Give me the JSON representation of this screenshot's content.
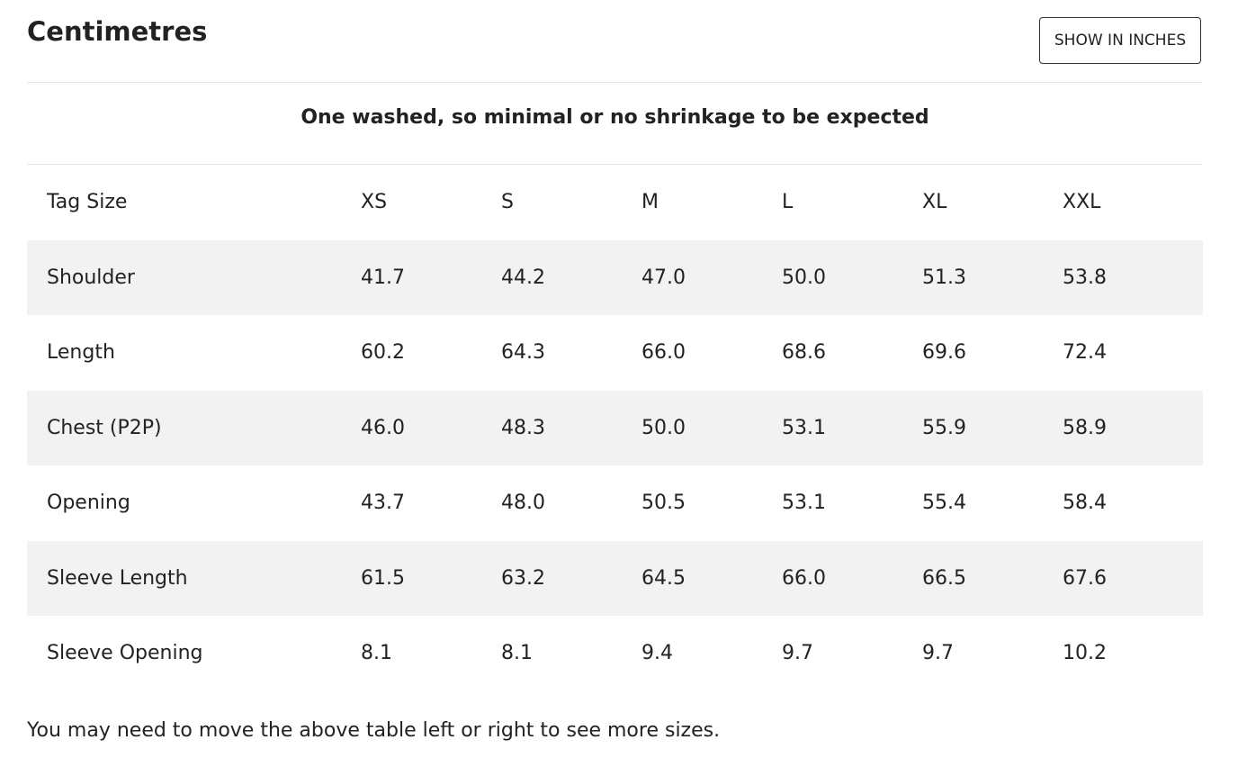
{
  "title": "Centimetres",
  "button": "SHOW IN INCHES",
  "subtitle": "One washed, so minimal or no shrinkage to be expected",
  "table": {
    "header": [
      "Tag Size",
      "XS",
      "S",
      "M",
      "L",
      "XL",
      "XXL"
    ],
    "rows": [
      [
        "Shoulder",
        "41.7",
        "44.2",
        "47.0",
        "50.0",
        "51.3",
        "53.8"
      ],
      [
        "Length",
        "60.2",
        "64.3",
        "66.0",
        "68.6",
        "69.6",
        "72.4"
      ],
      [
        "Chest (P2P)",
        "46.0",
        "48.3",
        "50.0",
        "53.1",
        "55.9",
        "58.9"
      ],
      [
        "Opening",
        "43.7",
        "48.0",
        "50.5",
        "53.1",
        "55.4",
        "58.4"
      ],
      [
        "Sleeve Length",
        "61.5",
        "63.2",
        "64.5",
        "66.0",
        "66.5",
        "67.6"
      ],
      [
        "Sleeve Opening",
        "8.1",
        "8.1",
        "9.4",
        "9.7",
        "9.7",
        "10.2"
      ]
    ]
  },
  "footnote": "You may need to move the above table left or right to see more sizes."
}
